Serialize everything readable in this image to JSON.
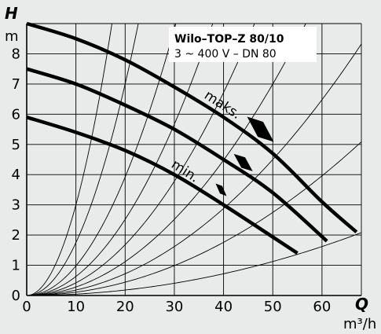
{
  "chart_data": {
    "type": "line",
    "title": "Wilo–TOP–Z 80/10",
    "subtitle": "3 ~ 400 V – DN 80",
    "xlabel": "Q",
    "xunit": "m³/h",
    "ylabel": "H",
    "yunit": "m",
    "xlim": [
      0,
      68
    ],
    "ylim": [
      0,
      9
    ],
    "xticks": [
      0,
      10,
      20,
      30,
      40,
      50,
      60
    ],
    "yticks": [
      0,
      1,
      2,
      3,
      4,
      5,
      6,
      7,
      8
    ],
    "grid": true,
    "series": [
      {
        "name": "maks.",
        "points": [
          [
            0,
            9.0
          ],
          [
            10,
            8.5
          ],
          [
            20,
            7.8
          ],
          [
            30,
            6.9
          ],
          [
            40,
            5.9
          ],
          [
            50,
            4.7
          ],
          [
            60,
            3.1
          ],
          [
            67,
            2.1
          ]
        ]
      },
      {
        "points": [
          [
            0,
            7.5
          ],
          [
            10,
            7.0
          ],
          [
            20,
            6.3
          ],
          [
            30,
            5.5
          ],
          [
            40,
            4.5
          ],
          [
            50,
            3.4
          ],
          [
            61,
            1.8
          ]
        ]
      },
      {
        "name": "min.",
        "points": [
          [
            0,
            5.9
          ],
          [
            10,
            5.4
          ],
          [
            20,
            4.8
          ],
          [
            30,
            4.0
          ],
          [
            40,
            3.0
          ],
          [
            55,
            1.4
          ]
        ]
      }
    ],
    "system_curves_k": [
      0.03,
      0.0175,
      0.0098,
      0.0063,
      0.0042,
      0.0028,
      0.0018,
      0.0011,
      0.00045
    ],
    "annotations": {
      "max_label": "maks.",
      "min_label": "min."
    }
  }
}
